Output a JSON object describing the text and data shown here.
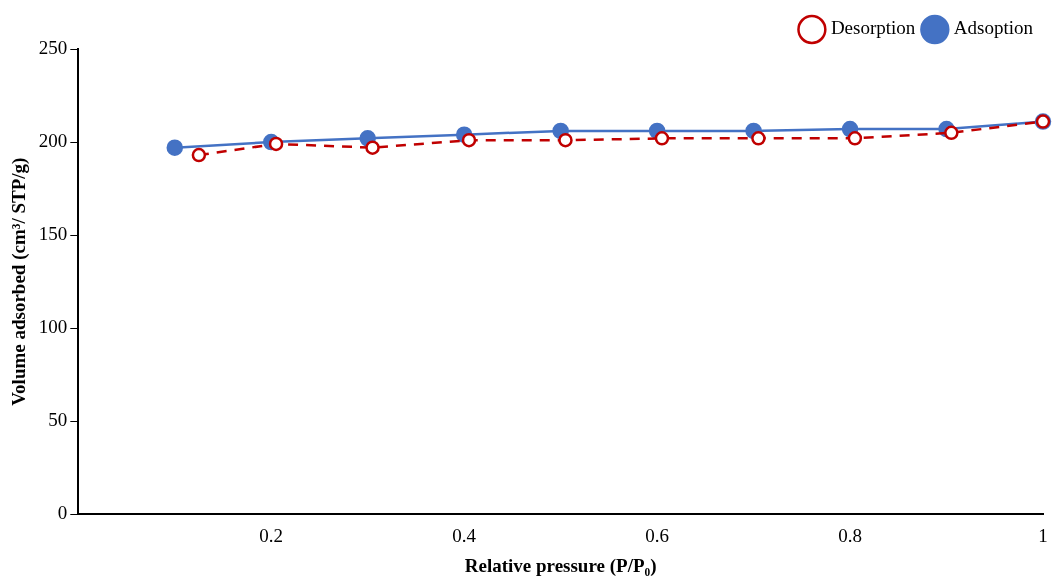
{
  "chart_data": {
    "type": "line",
    "xlabel": "Relative pressure (P/P₀)",
    "ylabel": "Volume adsorbed (cm³/ STP/g)",
    "series": [
      {
        "name": "Adsoption",
        "color": "#4472c4",
        "marker": "circle",
        "line_style": "solid",
        "x": [
          0.1,
          0.2,
          0.3,
          0.4,
          0.5,
          0.6,
          0.7,
          0.8,
          0.9,
          1.0
        ],
        "values": [
          197,
          200,
          202,
          204,
          206,
          206,
          206,
          207,
          207,
          211
        ]
      },
      {
        "name": "Desorption",
        "color": "#c00000",
        "marker": "circle",
        "line_style": "dashed",
        "x": [
          0.125,
          0.205,
          0.305,
          0.405,
          0.505,
          0.605,
          0.705,
          0.805,
          0.905,
          1.0
        ],
        "values": [
          193,
          199,
          197,
          201,
          201,
          202,
          202,
          202,
          205,
          211
        ]
      }
    ],
    "xlim": [
      0,
      1
    ],
    "xticks": [
      0.2,
      0.4,
      0.6,
      0.8,
      1
    ],
    "ylim": [
      0,
      250
    ],
    "yticks": [
      0,
      50,
      100,
      150,
      200,
      250
    ],
    "grid": false,
    "legend": "top right"
  }
}
